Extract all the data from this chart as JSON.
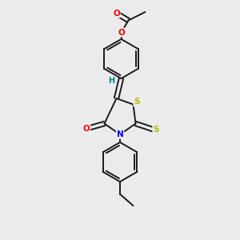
{
  "background_color": "#ebebeb",
  "bond_color": "#1a1a1a",
  "atom_colors": {
    "O": "#ff0000",
    "N": "#0000ff",
    "S": "#b8b800",
    "H": "#008080",
    "C": "#1a1a1a"
  },
  "figsize": [
    3.0,
    3.0
  ],
  "dpi": 100
}
